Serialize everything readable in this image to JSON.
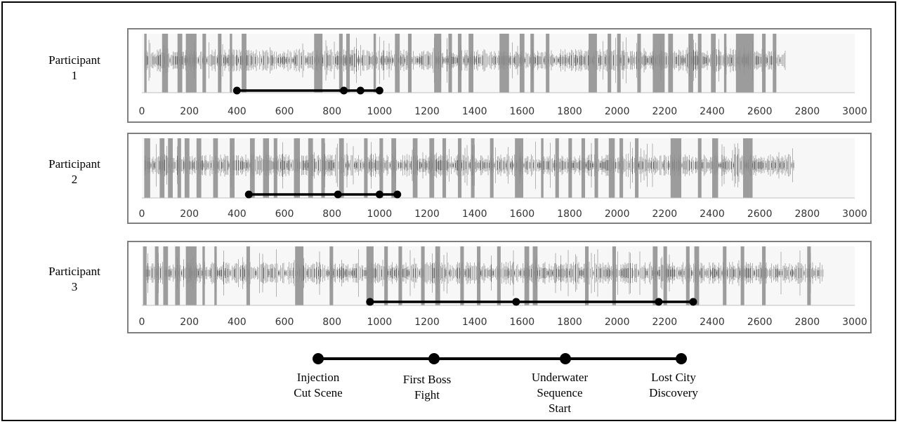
{
  "chart_data": [
    {
      "type": "line",
      "participant_label": [
        "Participant",
        "1"
      ],
      "xlim": [
        0,
        3000
      ],
      "x_ticks": [
        0,
        200,
        400,
        600,
        800,
        1000,
        1200,
        1400,
        1600,
        1800,
        2000,
        2200,
        2400,
        2600,
        2800,
        3000
      ],
      "signal_end": 2710,
      "events": [
        400,
        850,
        920,
        1000
      ],
      "highlight_bands": [
        [
          10,
          20
        ],
        [
          85,
          110
        ],
        [
          150,
          170
        ],
        [
          185,
          230
        ],
        [
          255,
          270
        ],
        [
          320,
          335
        ],
        [
          370,
          380
        ],
        [
          420,
          440
        ],
        [
          725,
          760
        ],
        [
          830,
          845
        ],
        [
          860,
          875
        ],
        [
          975,
          985
        ],
        [
          1065,
          1085
        ],
        [
          1120,
          1135
        ],
        [
          1230,
          1260
        ],
        [
          1290,
          1305
        ],
        [
          1330,
          1345
        ],
        [
          1375,
          1395
        ],
        [
          1505,
          1545
        ],
        [
          1590,
          1610
        ],
        [
          1635,
          1650
        ],
        [
          1700,
          1715
        ],
        [
          1880,
          1915
        ],
        [
          1960,
          1975
        ],
        [
          2000,
          2015
        ],
        [
          2085,
          2100
        ],
        [
          2150,
          2200
        ],
        [
          2215,
          2235
        ],
        [
          2300,
          2320
        ],
        [
          2340,
          2355
        ],
        [
          2395,
          2415
        ],
        [
          2450,
          2460
        ],
        [
          2500,
          2575
        ],
        [
          2610,
          2625
        ],
        [
          2655,
          2670
        ]
      ]
    },
    {
      "type": "line",
      "participant_label": [
        "Participant",
        "2"
      ],
      "xlim": [
        0,
        3000
      ],
      "x_ticks": [
        0,
        200,
        400,
        600,
        800,
        1000,
        1200,
        1400,
        1600,
        1800,
        2000,
        2200,
        2400,
        2600,
        2800,
        3000
      ],
      "signal_end": 2745,
      "events": [
        450,
        825,
        1000,
        1075
      ],
      "highlight_bands": [
        [
          10,
          35
        ],
        [
          75,
          95
        ],
        [
          110,
          130
        ],
        [
          150,
          165
        ],
        [
          180,
          200
        ],
        [
          230,
          250
        ],
        [
          300,
          320
        ],
        [
          370,
          390
        ],
        [
          455,
          475
        ],
        [
          510,
          535
        ],
        [
          555,
          570
        ],
        [
          640,
          665
        ],
        [
          700,
          720
        ],
        [
          755,
          770
        ],
        [
          830,
          850
        ],
        [
          935,
          950
        ],
        [
          1000,
          1015
        ],
        [
          1050,
          1070
        ],
        [
          1140,
          1160
        ],
        [
          1210,
          1230
        ],
        [
          1265,
          1280
        ],
        [
          1330,
          1345
        ],
        [
          1385,
          1400
        ],
        [
          1465,
          1480
        ],
        [
          1570,
          1605
        ],
        [
          1680,
          1690
        ],
        [
          1740,
          1755
        ],
        [
          1795,
          1810
        ],
        [
          1850,
          1865
        ],
        [
          1905,
          1920
        ],
        [
          1965,
          1990
        ],
        [
          2010,
          2025
        ],
        [
          2075,
          2090
        ],
        [
          2225,
          2270
        ],
        [
          2340,
          2355
        ],
        [
          2400,
          2425
        ],
        [
          2530,
          2570
        ]
      ]
    },
    {
      "type": "line",
      "participant_label": [
        "Participant",
        "3"
      ],
      "xlim": [
        0,
        3000
      ],
      "x_ticks": [
        0,
        200,
        400,
        600,
        800,
        1000,
        1200,
        1400,
        1600,
        1800,
        2000,
        2200,
        2400,
        2600,
        2800,
        3000
      ],
      "signal_end": 2870,
      "events": [
        960,
        1575,
        2175,
        2320
      ],
      "highlight_bands": [
        [
          5,
          20
        ],
        [
          55,
          70
        ],
        [
          90,
          110
        ],
        [
          140,
          160
        ],
        [
          185,
          230
        ],
        [
          255,
          265
        ],
        [
          305,
          315
        ],
        [
          440,
          455
        ],
        [
          645,
          680
        ],
        [
          790,
          805
        ],
        [
          945,
          975
        ],
        [
          1020,
          1035
        ],
        [
          1080,
          1095
        ],
        [
          1175,
          1190
        ],
        [
          1235,
          1255
        ],
        [
          1340,
          1355
        ],
        [
          1410,
          1425
        ],
        [
          1495,
          1510
        ],
        [
          1610,
          1630
        ],
        [
          1645,
          1665
        ],
        [
          1865,
          1880
        ],
        [
          1980,
          1995
        ],
        [
          2150,
          2170
        ],
        [
          2195,
          2210
        ],
        [
          2290,
          2305
        ],
        [
          2325,
          2345
        ],
        [
          2445,
          2460
        ],
        [
          2520,
          2535
        ],
        [
          2610,
          2625
        ],
        [
          2800,
          2815
        ]
      ]
    }
  ],
  "legend": {
    "events": [
      [
        "Injection",
        "Cut Scene"
      ],
      [
        "First Boss",
        "Fight"
      ],
      [
        "Underwater",
        "Sequence",
        "Start"
      ],
      [
        "Lost City",
        "Discovery"
      ]
    ]
  },
  "colors": {
    "frame": "#000000",
    "chart_border": "#7f7f7f",
    "plot_background": "#f7f7f7",
    "band": "#8c8c8c",
    "signal_light": "#b2b2b2",
    "signal_dark": "#4d4d4d",
    "event_line": "#000000"
  }
}
